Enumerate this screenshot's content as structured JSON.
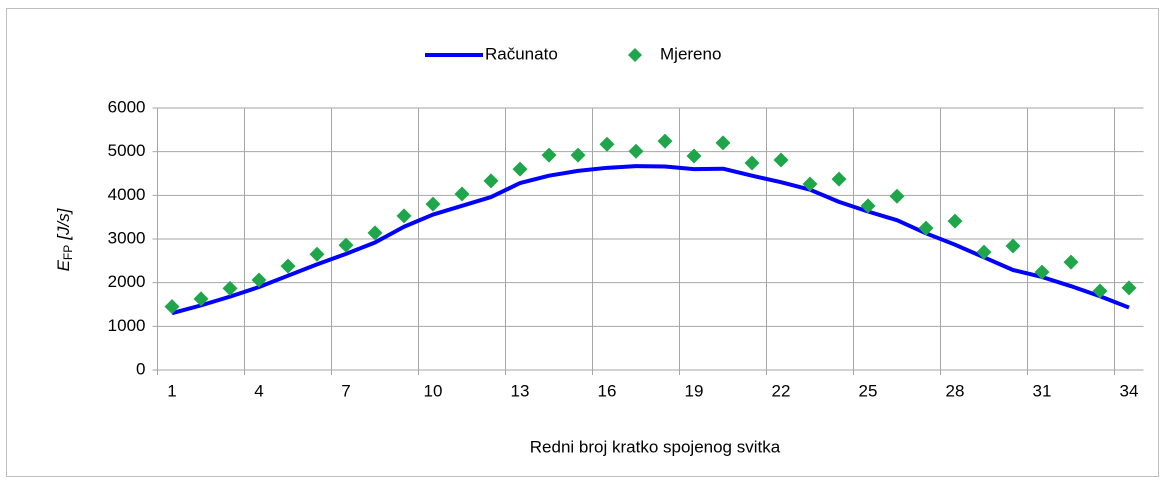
{
  "chart_data": {
    "type": "line",
    "xlabel": "Redni broj kratko spojenog svitka",
    "ylabel": {
      "symbol": "E",
      "subscript": "FP",
      "unit": "[J/s]"
    },
    "categories": [
      "1",
      null,
      null,
      "4",
      null,
      null,
      "7",
      null,
      null,
      "10",
      null,
      null,
      "13",
      null,
      null,
      "16",
      null,
      null,
      "19",
      null,
      null,
      "22",
      null,
      null,
      "25",
      null,
      null,
      "28",
      null,
      null,
      "31",
      null,
      null,
      "34"
    ],
    "series": [
      {
        "name": "Računato",
        "color": "#0000ff",
        "style": "line",
        "values": [
          1300,
          1480,
          1680,
          1900,
          2160,
          2420,
          2660,
          2920,
          3280,
          3560,
          3760,
          3960,
          4280,
          4450,
          4560,
          4630,
          4670,
          4660,
          4600,
          4610,
          4450,
          4300,
          4130,
          3850,
          3630,
          3430,
          3130,
          2870,
          2580,
          2290,
          2130,
          1920,
          1690,
          1430
        ]
      },
      {
        "name": "Mjereno",
        "color": "#1fa64b",
        "style": "marker",
        "values": [
          1450,
          1630,
          1870,
          2060,
          2380,
          2650,
          2860,
          3140,
          3530,
          3800,
          4030,
          4330,
          4600,
          4920,
          4920,
          5170,
          5010,
          5240,
          4900,
          5200,
          4740,
          4810,
          4260,
          4370,
          3760,
          3980,
          3250,
          3410,
          2700,
          2840,
          2240,
          2470,
          1810,
          1880
        ]
      }
    ],
    "ylim": [
      0,
      6000
    ],
    "yticks": [
      0,
      1000,
      2000,
      3000,
      4000,
      5000,
      6000
    ],
    "category_tick_every": 3,
    "grid": true,
    "legend": "top"
  }
}
